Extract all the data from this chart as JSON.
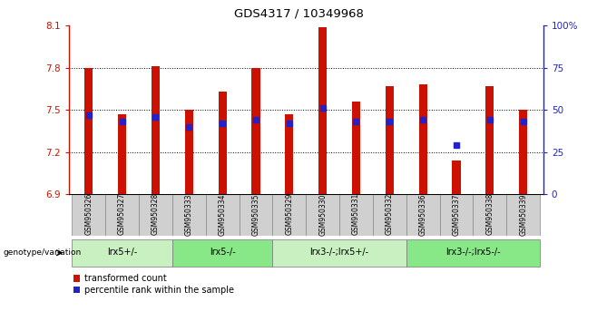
{
  "title": "GDS4317 / 10349968",
  "samples": [
    "GSM950326",
    "GSM950327",
    "GSM950328",
    "GSM950333",
    "GSM950334",
    "GSM950335",
    "GSM950329",
    "GSM950330",
    "GSM950331",
    "GSM950332",
    "GSM950336",
    "GSM950337",
    "GSM950338",
    "GSM950339"
  ],
  "transformed_count": [
    7.8,
    7.47,
    7.81,
    7.5,
    7.63,
    7.8,
    7.47,
    8.09,
    7.56,
    7.67,
    7.68,
    7.14,
    7.67,
    7.5
  ],
  "percentile_rank": [
    47,
    43,
    46,
    40,
    42,
    44,
    42,
    51,
    43,
    43,
    44,
    29,
    44,
    43
  ],
  "ylim_left": [
    6.9,
    8.1
  ],
  "ylim_right": [
    0,
    100
  ],
  "yticks_left": [
    6.9,
    7.2,
    7.5,
    7.8,
    8.1
  ],
  "yticks_right": [
    0,
    25,
    50,
    75,
    100
  ],
  "bar_color": "#cc1100",
  "dot_color": "#2222cc",
  "bar_bottom": 6.9,
  "bar_width": 0.25,
  "groups": [
    {
      "label": "lrx5+/-",
      "start": 0,
      "end": 3,
      "color": "#c8f0c0"
    },
    {
      "label": "lrx5-/-",
      "start": 3,
      "end": 6,
      "color": "#88e888"
    },
    {
      "label": "lrx3-/-;lrx5+/-",
      "start": 6,
      "end": 10,
      "color": "#c8f0c0"
    },
    {
      "label": "lrx3-/-;lrx5-/-",
      "start": 10,
      "end": 14,
      "color": "#88e888"
    }
  ],
  "legend_red_label": "transformed count",
  "legend_blue_label": "percentile rank within the sample",
  "genotype_label": "genotype/variation",
  "tick_area_bg": "#d0d0d0"
}
